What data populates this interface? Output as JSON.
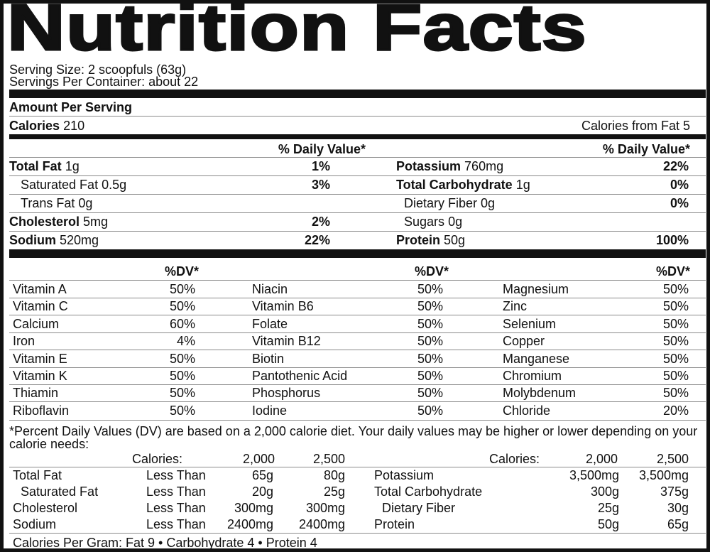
{
  "title": "Nutrition Facts",
  "serving_size": "Serving Size: 2 scoopfuls (63g)",
  "servings_per_container": "Servings Per Container: about 22",
  "amount_per_serving": "Amount Per Serving",
  "calories": {
    "label": "Calories",
    "value": "210"
  },
  "calories_from_fat": "Calories from Fat 5",
  "daily_value_header": "% Daily Value*",
  "left_nutrients": [
    {
      "name": "Total Fat",
      "amount": "1g",
      "dv": "1%",
      "bold": true
    },
    {
      "name": "Saturated Fat",
      "amount": "0.5g",
      "dv": "3%",
      "bold": false
    },
    {
      "name": "Trans Fat",
      "amount": "0g",
      "dv": "",
      "bold": false
    },
    {
      "name": "Cholesterol",
      "amount": "5mg",
      "dv": "2%",
      "bold": true
    },
    {
      "name": "Sodium",
      "amount": "520mg",
      "dv": "22%",
      "bold": true
    }
  ],
  "right_nutrients": [
    {
      "name": "Potassium",
      "amount": "760mg",
      "dv": "22%",
      "bold": true
    },
    {
      "name": "Total Carbohydrate",
      "amount": "1g",
      "dv": "0%",
      "bold": true
    },
    {
      "name": "Dietary Fiber",
      "amount": "0g",
      "dv": "0%",
      "bold": false
    },
    {
      "name": "Sugars",
      "amount": "0g",
      "dv": "",
      "bold": false
    },
    {
      "name": "Protein",
      "amount": "50g",
      "dv": "100%",
      "bold": true
    }
  ],
  "dv_header": "%DV*",
  "vitamins": {
    "col1": [
      {
        "name": "Vitamin A",
        "dv": "50%"
      },
      {
        "name": "Vitamin C",
        "dv": "50%"
      },
      {
        "name": "Calcium",
        "dv": "60%"
      },
      {
        "name": "Iron",
        "dv": "4%"
      },
      {
        "name": "Vitamin E",
        "dv": "50%"
      },
      {
        "name": "Vitamin K",
        "dv": "50%"
      },
      {
        "name": "Thiamin",
        "dv": "50%"
      },
      {
        "name": "Riboflavin",
        "dv": "50%"
      }
    ],
    "col2": [
      {
        "name": "Niacin",
        "dv": "50%"
      },
      {
        "name": "Vitamin B6",
        "dv": "50%"
      },
      {
        "name": "Folate",
        "dv": "50%"
      },
      {
        "name": "Vitamin B12",
        "dv": "50%"
      },
      {
        "name": "Biotin",
        "dv": "50%"
      },
      {
        "name": "Pantothenic Acid",
        "dv": "50%"
      },
      {
        "name": "Phosphorus",
        "dv": "50%"
      },
      {
        "name": "Iodine",
        "dv": "50%"
      }
    ],
    "col3": [
      {
        "name": "Magnesium",
        "dv": "50%"
      },
      {
        "name": "Zinc",
        "dv": "50%"
      },
      {
        "name": "Selenium",
        "dv": "50%"
      },
      {
        "name": "Copper",
        "dv": "50%"
      },
      {
        "name": "Manganese",
        "dv": "50%"
      },
      {
        "name": "Chromium",
        "dv": "50%"
      },
      {
        "name": "Molybdenum",
        "dv": "50%"
      },
      {
        "name": "Chloride",
        "dv": "20%"
      }
    ]
  },
  "footnote": "*Percent Daily Values (DV) are based on a 2,000 calorie diet. Your daily values may be higher or lower depending on your calorie needs:",
  "reference": {
    "calories_label": "Calories:",
    "levels": [
      "2,000",
      "2,500"
    ],
    "left_rows": [
      {
        "name": "Total Fat",
        "qualifier": "Less Than",
        "v1": "65g",
        "v2": "80g"
      },
      {
        "name": "Saturated Fat",
        "qualifier": "Less Than",
        "v1": "20g",
        "v2": "25g"
      },
      {
        "name": "Cholesterol",
        "qualifier": "Less Than",
        "v1": "300mg",
        "v2": "300mg"
      },
      {
        "name": "Sodium",
        "qualifier": "Less Than",
        "v1": "2400mg",
        "v2": "2400mg"
      }
    ],
    "right_rows": [
      {
        "name": "Potassium",
        "v1": "3,500mg",
        "v2": "3,500mg"
      },
      {
        "name": "Total Carbohydrate",
        "v1": "300g",
        "v2": "375g"
      },
      {
        "name": "Dietary Fiber",
        "v1": "25g",
        "v2": "30g"
      },
      {
        "name": "Protein",
        "v1": "50g",
        "v2": "65g"
      }
    ]
  },
  "calories_per_gram": "Calories Per Gram: Fat 9 • Carbohydrate 4 • Protein 4"
}
